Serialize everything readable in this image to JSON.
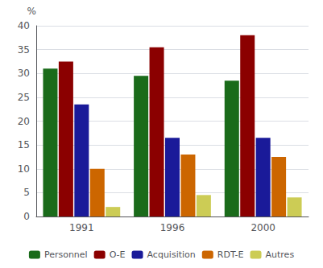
{
  "chart_data": {
    "type": "bar",
    "ylabel": "%",
    "categories": [
      "1991",
      "1996",
      "2000"
    ],
    "series": [
      {
        "name": "Personnel",
        "color": "#1a6b1a",
        "values": [
          31,
          29.5,
          28.5
        ]
      },
      {
        "name": "O-E",
        "color": "#8b0000",
        "values": [
          32.5,
          35.5,
          38
        ]
      },
      {
        "name": "Acquisition",
        "color": "#1a1a99",
        "values": [
          23.5,
          16.5,
          16.5
        ]
      },
      {
        "name": "RDT-E",
        "color": "#cc6600",
        "values": [
          10,
          13,
          12.5
        ]
      },
      {
        "name": "Autres",
        "color": "#cccc55",
        "values": [
          2,
          4.5,
          4
        ]
      }
    ],
    "ylim": [
      0,
      40
    ],
    "yticks": [
      0,
      5,
      10,
      15,
      20,
      25,
      30,
      35,
      40
    ],
    "grid": true,
    "legend": "bottom"
  }
}
